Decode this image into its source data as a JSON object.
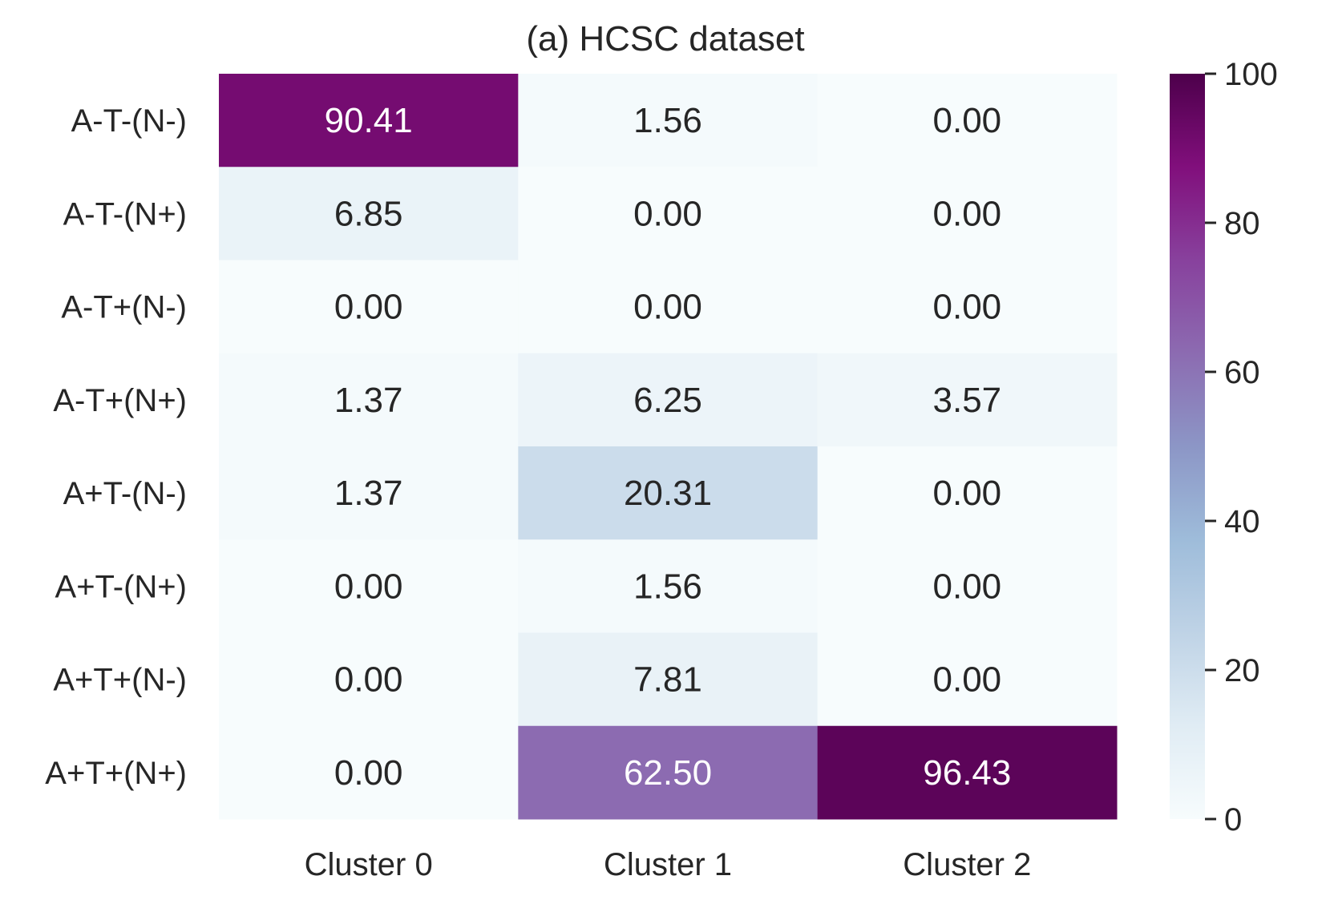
{
  "chart_data": {
    "type": "heatmap",
    "title": "(a) HCSC dataset",
    "rows": [
      "A-T-(N-)",
      "A-T-(N+)",
      "A-T+(N-)",
      "A-T+(N+)",
      "A+T-(N-)",
      "A+T-(N+)",
      "A+T+(N-)",
      "A+T+(N+)"
    ],
    "columns": [
      "Cluster 0",
      "Cluster 1",
      "Cluster 2"
    ],
    "values": [
      [
        90.41,
        1.56,
        0.0
      ],
      [
        6.85,
        0.0,
        0.0
      ],
      [
        0.0,
        0.0,
        0.0
      ],
      [
        1.37,
        6.25,
        3.57
      ],
      [
        1.37,
        20.31,
        0.0
      ],
      [
        0.0,
        1.56,
        0.0
      ],
      [
        0.0,
        7.81,
        0.0
      ],
      [
        0.0,
        62.5,
        96.43
      ]
    ],
    "value_format": "0.00",
    "colormap": "BuPu",
    "colorbar": {
      "range": [
        0,
        100
      ],
      "ticks": [
        0,
        20,
        40,
        60,
        80,
        100
      ]
    },
    "colors": {
      "stops": [
        "#f7fcfd",
        "#e0ecf4",
        "#bfd3e6",
        "#9ebcda",
        "#8c96c6",
        "#8c6bb1",
        "#88419d",
        "#810f7c",
        "#4d004b"
      ],
      "dark_text": "#262626",
      "light_text": "#ffffff"
    }
  }
}
